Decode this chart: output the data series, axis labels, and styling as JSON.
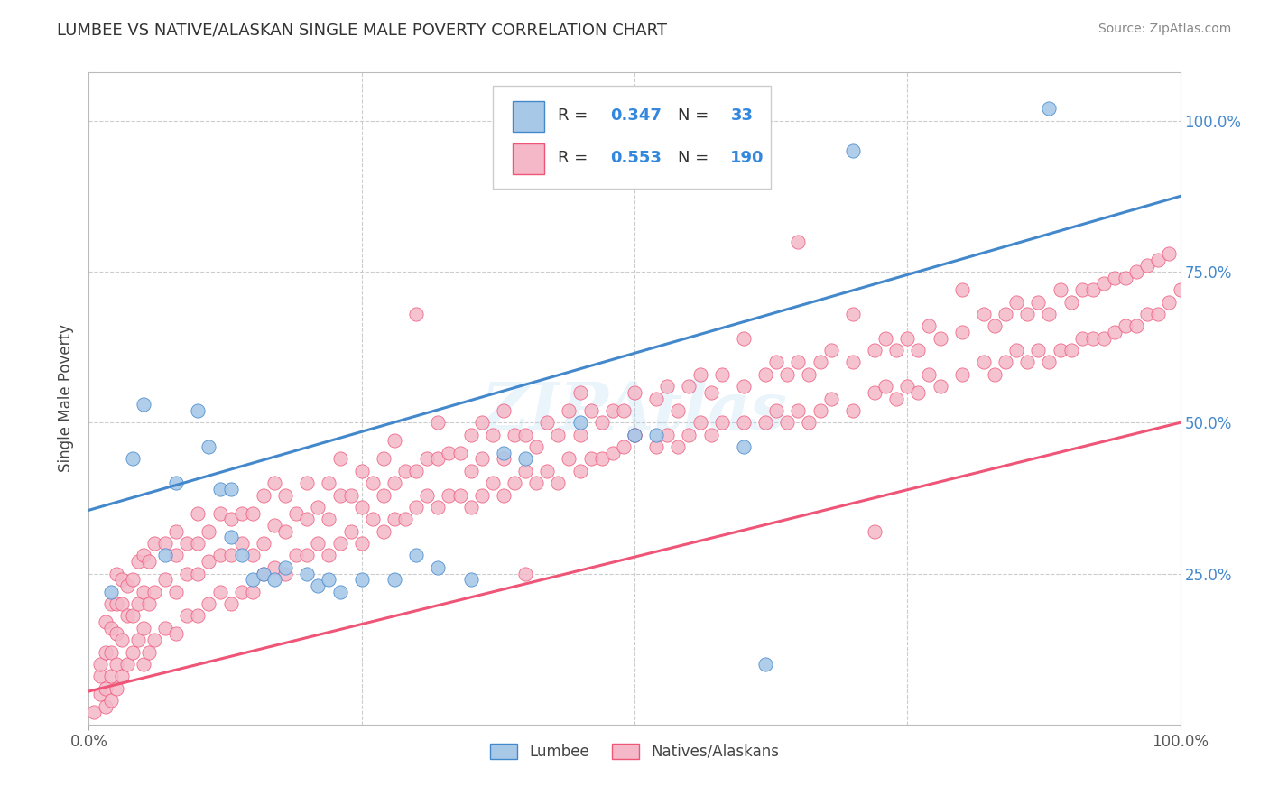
{
  "title": "LUMBEE VS NATIVE/ALASKAN SINGLE MALE POVERTY CORRELATION CHART",
  "source": "Source: ZipAtlas.com",
  "ylabel": "Single Male Poverty",
  "ytick_labels": [
    "25.0%",
    "50.0%",
    "75.0%",
    "100.0%"
  ],
  "ytick_positions": [
    0.25,
    0.5,
    0.75,
    1.0
  ],
  "xlim": [
    0.0,
    1.0
  ],
  "ylim": [
    0.0,
    1.08
  ],
  "lumbee_R": 0.347,
  "lumbee_N": 33,
  "native_R": 0.553,
  "native_N": 190,
  "lumbee_color": "#a8c8e8",
  "native_color": "#f4b8c8",
  "lumbee_line_color": "#4488cc",
  "native_line_color": "#ee5577",
  "lumbee_line_start_y": 0.355,
  "lumbee_line_end_y": 0.875,
  "native_line_start_y": 0.055,
  "native_line_end_y": 0.5,
  "legend_labels": [
    "Lumbee",
    "Natives/Alaskans"
  ],
  "watermark": "ZIPAtlas",
  "lumbee_points": [
    [
      0.02,
      0.22
    ],
    [
      0.04,
      0.44
    ],
    [
      0.05,
      0.53
    ],
    [
      0.07,
      0.28
    ],
    [
      0.08,
      0.4
    ],
    [
      0.1,
      0.52
    ],
    [
      0.11,
      0.46
    ],
    [
      0.12,
      0.39
    ],
    [
      0.13,
      0.31
    ],
    [
      0.13,
      0.39
    ],
    [
      0.14,
      0.28
    ],
    [
      0.15,
      0.24
    ],
    [
      0.16,
      0.25
    ],
    [
      0.17,
      0.24
    ],
    [
      0.18,
      0.26
    ],
    [
      0.2,
      0.25
    ],
    [
      0.21,
      0.23
    ],
    [
      0.22,
      0.24
    ],
    [
      0.23,
      0.22
    ],
    [
      0.25,
      0.24
    ],
    [
      0.28,
      0.24
    ],
    [
      0.3,
      0.28
    ],
    [
      0.32,
      0.26
    ],
    [
      0.35,
      0.24
    ],
    [
      0.38,
      0.45
    ],
    [
      0.4,
      0.44
    ],
    [
      0.45,
      0.5
    ],
    [
      0.5,
      0.48
    ],
    [
      0.52,
      0.48
    ],
    [
      0.6,
      0.46
    ],
    [
      0.62,
      0.1
    ],
    [
      0.7,
      0.95
    ],
    [
      0.88,
      1.02
    ]
  ],
  "native_points": [
    [
      0.005,
      0.02
    ],
    [
      0.01,
      0.05
    ],
    [
      0.01,
      0.08
    ],
    [
      0.01,
      0.1
    ],
    [
      0.015,
      0.03
    ],
    [
      0.015,
      0.06
    ],
    [
      0.015,
      0.12
    ],
    [
      0.015,
      0.17
    ],
    [
      0.02,
      0.04
    ],
    [
      0.02,
      0.08
    ],
    [
      0.02,
      0.12
    ],
    [
      0.02,
      0.16
    ],
    [
      0.02,
      0.2
    ],
    [
      0.025,
      0.06
    ],
    [
      0.025,
      0.1
    ],
    [
      0.025,
      0.15
    ],
    [
      0.025,
      0.2
    ],
    [
      0.025,
      0.25
    ],
    [
      0.03,
      0.08
    ],
    [
      0.03,
      0.14
    ],
    [
      0.03,
      0.2
    ],
    [
      0.03,
      0.24
    ],
    [
      0.035,
      0.1
    ],
    [
      0.035,
      0.18
    ],
    [
      0.035,
      0.23
    ],
    [
      0.04,
      0.12
    ],
    [
      0.04,
      0.18
    ],
    [
      0.04,
      0.24
    ],
    [
      0.045,
      0.14
    ],
    [
      0.045,
      0.2
    ],
    [
      0.045,
      0.27
    ],
    [
      0.05,
      0.1
    ],
    [
      0.05,
      0.16
    ],
    [
      0.05,
      0.22
    ],
    [
      0.05,
      0.28
    ],
    [
      0.055,
      0.12
    ],
    [
      0.055,
      0.2
    ],
    [
      0.055,
      0.27
    ],
    [
      0.06,
      0.14
    ],
    [
      0.06,
      0.22
    ],
    [
      0.06,
      0.3
    ],
    [
      0.07,
      0.16
    ],
    [
      0.07,
      0.24
    ],
    [
      0.07,
      0.3
    ],
    [
      0.08,
      0.15
    ],
    [
      0.08,
      0.22
    ],
    [
      0.08,
      0.28
    ],
    [
      0.08,
      0.32
    ],
    [
      0.09,
      0.18
    ],
    [
      0.09,
      0.25
    ],
    [
      0.09,
      0.3
    ],
    [
      0.1,
      0.18
    ],
    [
      0.1,
      0.25
    ],
    [
      0.1,
      0.3
    ],
    [
      0.1,
      0.35
    ],
    [
      0.11,
      0.2
    ],
    [
      0.11,
      0.27
    ],
    [
      0.11,
      0.32
    ],
    [
      0.12,
      0.22
    ],
    [
      0.12,
      0.28
    ],
    [
      0.12,
      0.35
    ],
    [
      0.13,
      0.2
    ],
    [
      0.13,
      0.28
    ],
    [
      0.13,
      0.34
    ],
    [
      0.14,
      0.22
    ],
    [
      0.14,
      0.3
    ],
    [
      0.14,
      0.35
    ],
    [
      0.15,
      0.22
    ],
    [
      0.15,
      0.28
    ],
    [
      0.15,
      0.35
    ],
    [
      0.16,
      0.25
    ],
    [
      0.16,
      0.3
    ],
    [
      0.16,
      0.38
    ],
    [
      0.17,
      0.26
    ],
    [
      0.17,
      0.33
    ],
    [
      0.17,
      0.4
    ],
    [
      0.18,
      0.25
    ],
    [
      0.18,
      0.32
    ],
    [
      0.18,
      0.38
    ],
    [
      0.19,
      0.28
    ],
    [
      0.19,
      0.35
    ],
    [
      0.2,
      0.28
    ],
    [
      0.2,
      0.34
    ],
    [
      0.2,
      0.4
    ],
    [
      0.21,
      0.3
    ],
    [
      0.21,
      0.36
    ],
    [
      0.22,
      0.28
    ],
    [
      0.22,
      0.34
    ],
    [
      0.22,
      0.4
    ],
    [
      0.23,
      0.3
    ],
    [
      0.23,
      0.38
    ],
    [
      0.23,
      0.44
    ],
    [
      0.24,
      0.32
    ],
    [
      0.24,
      0.38
    ],
    [
      0.25,
      0.3
    ],
    [
      0.25,
      0.36
    ],
    [
      0.25,
      0.42
    ],
    [
      0.26,
      0.34
    ],
    [
      0.26,
      0.4
    ],
    [
      0.27,
      0.32
    ],
    [
      0.27,
      0.38
    ],
    [
      0.27,
      0.44
    ],
    [
      0.28,
      0.34
    ],
    [
      0.28,
      0.4
    ],
    [
      0.28,
      0.47
    ],
    [
      0.29,
      0.34
    ],
    [
      0.29,
      0.42
    ],
    [
      0.3,
      0.36
    ],
    [
      0.3,
      0.42
    ],
    [
      0.3,
      0.68
    ],
    [
      0.31,
      0.38
    ],
    [
      0.31,
      0.44
    ],
    [
      0.32,
      0.36
    ],
    [
      0.32,
      0.44
    ],
    [
      0.32,
      0.5
    ],
    [
      0.33,
      0.38
    ],
    [
      0.33,
      0.45
    ],
    [
      0.34,
      0.38
    ],
    [
      0.34,
      0.45
    ],
    [
      0.35,
      0.36
    ],
    [
      0.35,
      0.42
    ],
    [
      0.35,
      0.48
    ],
    [
      0.36,
      0.38
    ],
    [
      0.36,
      0.44
    ],
    [
      0.36,
      0.5
    ],
    [
      0.37,
      0.4
    ],
    [
      0.37,
      0.48
    ],
    [
      0.38,
      0.38
    ],
    [
      0.38,
      0.44
    ],
    [
      0.38,
      0.52
    ],
    [
      0.39,
      0.4
    ],
    [
      0.39,
      0.48
    ],
    [
      0.4,
      0.42
    ],
    [
      0.4,
      0.48
    ],
    [
      0.4,
      0.25
    ],
    [
      0.41,
      0.4
    ],
    [
      0.41,
      0.46
    ],
    [
      0.42,
      0.42
    ],
    [
      0.42,
      0.5
    ],
    [
      0.43,
      0.4
    ],
    [
      0.43,
      0.48
    ],
    [
      0.44,
      0.44
    ],
    [
      0.44,
      0.52
    ],
    [
      0.45,
      0.42
    ],
    [
      0.45,
      0.48
    ],
    [
      0.45,
      0.55
    ],
    [
      0.46,
      0.44
    ],
    [
      0.46,
      0.52
    ],
    [
      0.47,
      0.44
    ],
    [
      0.47,
      0.5
    ],
    [
      0.48,
      0.45
    ],
    [
      0.48,
      0.52
    ],
    [
      0.49,
      0.46
    ],
    [
      0.49,
      0.52
    ],
    [
      0.5,
      0.48
    ],
    [
      0.5,
      0.55
    ],
    [
      0.5,
      0.48
    ],
    [
      0.52,
      0.46
    ],
    [
      0.52,
      0.54
    ],
    [
      0.53,
      0.48
    ],
    [
      0.53,
      0.56
    ],
    [
      0.54,
      0.46
    ],
    [
      0.54,
      0.52
    ],
    [
      0.55,
      0.48
    ],
    [
      0.55,
      0.56
    ],
    [
      0.56,
      0.5
    ],
    [
      0.56,
      0.58
    ],
    [
      0.57,
      0.48
    ],
    [
      0.57,
      0.55
    ],
    [
      0.58,
      0.5
    ],
    [
      0.58,
      0.58
    ],
    [
      0.6,
      0.5
    ],
    [
      0.6,
      0.56
    ],
    [
      0.6,
      0.64
    ],
    [
      0.62,
      0.5
    ],
    [
      0.62,
      0.58
    ],
    [
      0.63,
      0.52
    ],
    [
      0.63,
      0.6
    ],
    [
      0.64,
      0.5
    ],
    [
      0.64,
      0.58
    ],
    [
      0.65,
      0.52
    ],
    [
      0.65,
      0.6
    ],
    [
      0.65,
      0.8
    ],
    [
      0.66,
      0.5
    ],
    [
      0.66,
      0.58
    ],
    [
      0.67,
      0.52
    ],
    [
      0.67,
      0.6
    ],
    [
      0.68,
      0.54
    ],
    [
      0.68,
      0.62
    ],
    [
      0.7,
      0.52
    ],
    [
      0.7,
      0.6
    ],
    [
      0.7,
      0.68
    ],
    [
      0.72,
      0.55
    ],
    [
      0.72,
      0.62
    ],
    [
      0.72,
      0.32
    ],
    [
      0.73,
      0.56
    ],
    [
      0.73,
      0.64
    ],
    [
      0.74,
      0.54
    ],
    [
      0.74,
      0.62
    ],
    [
      0.75,
      0.56
    ],
    [
      0.75,
      0.64
    ],
    [
      0.76,
      0.55
    ],
    [
      0.76,
      0.62
    ],
    [
      0.77,
      0.58
    ],
    [
      0.77,
      0.66
    ],
    [
      0.78,
      0.56
    ],
    [
      0.78,
      0.64
    ],
    [
      0.8,
      0.58
    ],
    [
      0.8,
      0.65
    ],
    [
      0.8,
      0.72
    ],
    [
      0.82,
      0.6
    ],
    [
      0.82,
      0.68
    ],
    [
      0.83,
      0.58
    ],
    [
      0.83,
      0.66
    ],
    [
      0.84,
      0.6
    ],
    [
      0.84,
      0.68
    ],
    [
      0.85,
      0.62
    ],
    [
      0.85,
      0.7
    ],
    [
      0.86,
      0.6
    ],
    [
      0.86,
      0.68
    ],
    [
      0.87,
      0.62
    ],
    [
      0.87,
      0.7
    ],
    [
      0.88,
      0.6
    ],
    [
      0.88,
      0.68
    ],
    [
      0.89,
      0.62
    ],
    [
      0.89,
      0.72
    ],
    [
      0.9,
      0.62
    ],
    [
      0.9,
      0.7
    ],
    [
      0.91,
      0.64
    ],
    [
      0.91,
      0.72
    ],
    [
      0.92,
      0.64
    ],
    [
      0.92,
      0.72
    ],
    [
      0.93,
      0.64
    ],
    [
      0.93,
      0.73
    ],
    [
      0.94,
      0.65
    ],
    [
      0.94,
      0.74
    ],
    [
      0.95,
      0.66
    ],
    [
      0.95,
      0.74
    ],
    [
      0.96,
      0.66
    ],
    [
      0.96,
      0.75
    ],
    [
      0.97,
      0.68
    ],
    [
      0.97,
      0.76
    ],
    [
      0.98,
      0.68
    ],
    [
      0.98,
      0.77
    ],
    [
      0.99,
      0.7
    ],
    [
      0.99,
      0.78
    ],
    [
      1.0,
      0.72
    ]
  ]
}
